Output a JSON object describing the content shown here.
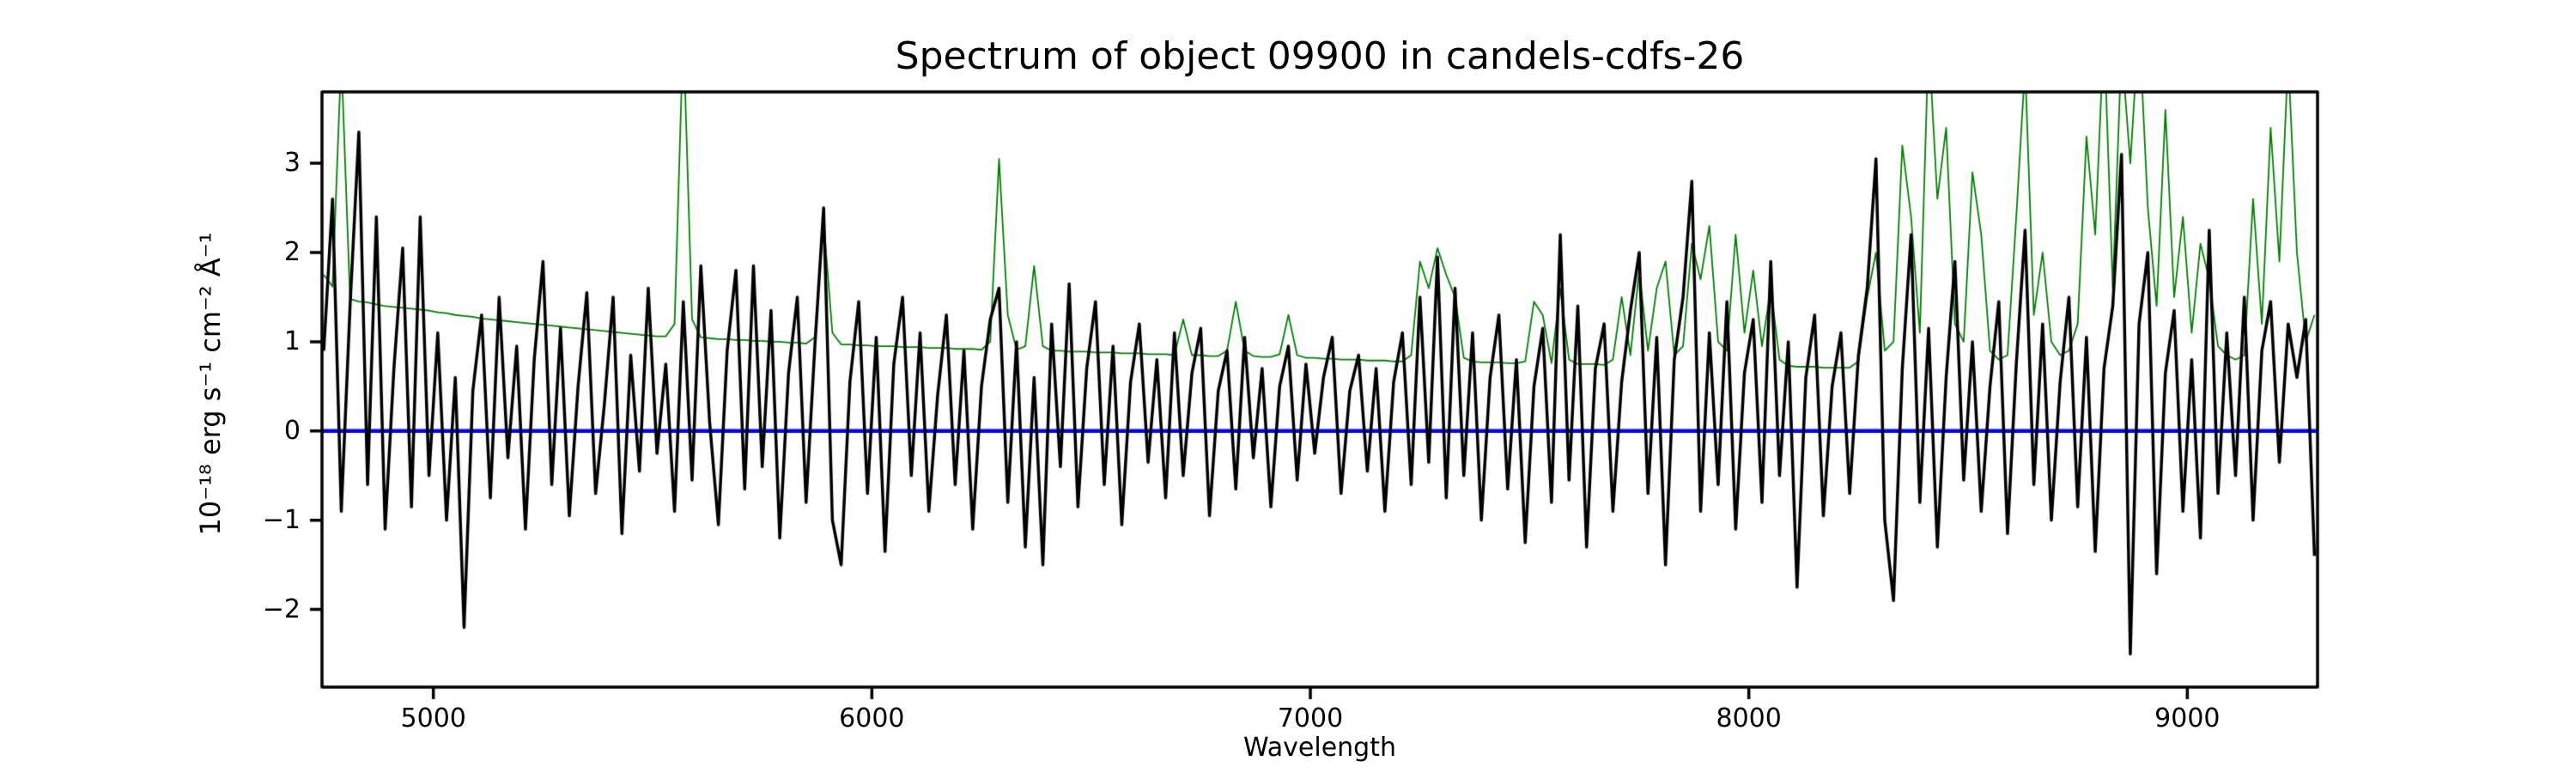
{
  "figure": {
    "title": "Spectrum of object 09900 in candels-cdfs-26",
    "xlabel": "Wavelength",
    "ylabel": "10⁻¹⁸ erg s⁻¹ cm⁻² Å⁻¹"
  },
  "chart_data": {
    "type": "line",
    "title": "Spectrum of object 09900 in candels-cdfs-26",
    "xlabel": "Wavelength",
    "ylabel": "10^-18 erg s^-1 cm^-2 A^-1",
    "xlim": [
      4746,
      9297
    ],
    "ylim": [
      -2.87,
      3.8
    ],
    "xticks": [
      5000,
      6000,
      7000,
      8000,
      9000
    ],
    "yticks": [
      -2,
      -1,
      0,
      1,
      2,
      3
    ],
    "grid": false,
    "legend": false,
    "background": "#ffffff",
    "axis_color": "#000000",
    "series": [
      {
        "name": "zero-line",
        "style": "hline",
        "y": 0,
        "color": "#0000ff",
        "linewidth": 4.5
      },
      {
        "name": "noise-spectrum",
        "style": "line",
        "color": "#008000",
        "linewidth": 1.8,
        "x_start": 4750,
        "x_step": 20,
        "values": [
          1.75,
          1.62,
          4.2,
          1.48,
          1.45,
          1.44,
          1.42,
          1.4,
          1.39,
          1.38,
          1.37,
          1.36,
          1.35,
          1.33,
          1.32,
          1.3,
          1.29,
          1.28,
          1.26,
          1.25,
          1.24,
          1.23,
          1.22,
          1.21,
          1.2,
          1.19,
          1.18,
          1.17,
          1.16,
          1.15,
          1.14,
          1.13,
          1.12,
          1.11,
          1.1,
          1.09,
          1.08,
          1.07,
          1.06,
          1.06,
          1.2,
          4.5,
          1.25,
          1.05,
          1.04,
          1.03,
          1.03,
          1.02,
          1.02,
          1.01,
          1.01,
          1.0,
          1.0,
          0.99,
          0.99,
          0.98,
          1.05,
          2.35,
          1.1,
          0.97,
          0.97,
          0.96,
          0.96,
          0.95,
          0.95,
          0.95,
          0.94,
          0.94,
          0.94,
          0.93,
          0.93,
          0.93,
          0.92,
          0.92,
          0.92,
          0.91,
          1.0,
          3.05,
          1.3,
          0.91,
          0.95,
          1.85,
          0.95,
          0.9,
          0.9,
          0.89,
          0.89,
          0.89,
          0.88,
          0.88,
          0.88,
          0.87,
          0.87,
          0.87,
          0.86,
          0.86,
          0.86,
          0.85,
          1.25,
          0.85,
          0.85,
          0.84,
          0.84,
          0.9,
          1.45,
          0.9,
          0.84,
          0.83,
          0.83,
          0.86,
          1.3,
          0.85,
          0.82,
          0.82,
          0.81,
          0.81,
          0.8,
          0.8,
          0.8,
          0.79,
          0.79,
          0.79,
          0.78,
          0.78,
          0.85,
          1.9,
          1.6,
          2.05,
          1.75,
          1.5,
          0.82,
          0.78,
          0.77,
          0.77,
          0.77,
          0.76,
          0.76,
          0.78,
          1.45,
          1.3,
          0.76,
          1.6,
          0.8,
          0.75,
          0.75,
          0.75,
          0.74,
          0.8,
          1.5,
          0.85,
          1.8,
          0.9,
          1.6,
          1.9,
          0.85,
          0.95,
          2.1,
          1.7,
          2.3,
          1.0,
          0.9,
          2.2,
          1.1,
          1.8,
          0.95,
          1.6,
          0.8,
          0.73,
          0.72,
          0.72,
          0.72,
          0.71,
          0.71,
          0.71,
          0.71,
          0.78,
          1.5,
          2.0,
          0.9,
          1.0,
          3.2,
          2.4,
          1.1,
          4.4,
          2.6,
          3.4,
          1.2,
          1.0,
          2.9,
          2.2,
          0.9,
          0.8,
          0.85,
          2.4,
          4.1,
          1.3,
          2.0,
          1.0,
          0.85,
          0.9,
          1.2,
          3.3,
          2.2,
          4.5,
          1.6,
          4.3,
          3.0,
          4.6,
          2.5,
          1.4,
          3.6,
          1.5,
          2.4,
          1.1,
          2.1,
          1.7,
          0.95,
          0.85,
          0.8,
          0.85,
          2.6,
          1.2,
          3.4,
          1.9,
          4.2,
          2.0,
          1.0,
          1.3
        ]
      },
      {
        "name": "flux-spectrum",
        "style": "line",
        "color": "#000000",
        "linewidth": 3.5,
        "x_start": 4750,
        "x_step": 20,
        "values": [
          0.9,
          2.6,
          -0.9,
          1.4,
          3.35,
          -0.6,
          2.4,
          -1.1,
          0.7,
          2.05,
          -0.85,
          2.4,
          -0.5,
          1.1,
          -1.0,
          0.6,
          -2.2,
          0.45,
          1.3,
          -0.75,
          1.5,
          -0.3,
          0.95,
          -1.1,
          0.8,
          1.9,
          -0.6,
          1.15,
          -0.95,
          0.5,
          1.55,
          -0.7,
          0.3,
          1.5,
          -1.15,
          0.85,
          -0.45,
          1.6,
          -0.25,
          0.75,
          -0.9,
          1.45,
          -0.55,
          1.85,
          0.1,
          -1.05,
          0.9,
          1.8,
          -0.65,
          1.85,
          -0.4,
          1.35,
          -1.2,
          0.65,
          1.5,
          -0.8,
          0.95,
          2.5,
          -1.0,
          -1.5,
          0.55,
          1.45,
          -0.7,
          1.05,
          -1.35,
          0.75,
          1.5,
          -0.5,
          1.1,
          -0.9,
          0.4,
          1.3,
          -0.6,
          0.9,
          -1.1,
          0.5,
          1.25,
          1.6,
          -0.8,
          1.0,
          -1.3,
          0.6,
          -1.5,
          1.2,
          -0.4,
          1.65,
          -0.85,
          0.7,
          1.45,
          -0.6,
          0.95,
          -1.05,
          0.55,
          1.2,
          -0.35,
          0.8,
          -0.75,
          1.1,
          -0.5,
          0.65,
          1.15,
          -0.95,
          0.45,
          0.9,
          -0.65,
          1.05,
          -0.3,
          0.7,
          -0.85,
          0.5,
          0.95,
          -0.55,
          0.75,
          -0.25,
          0.6,
          1.05,
          -0.7,
          0.45,
          0.85,
          -0.45,
          0.7,
          -0.9,
          0.55,
          1.1,
          -0.6,
          1.5,
          -0.35,
          1.95,
          -0.75,
          1.6,
          -0.5,
          1.1,
          -1.0,
          0.6,
          1.3,
          -0.65,
          0.8,
          -1.25,
          0.5,
          1.15,
          -0.8,
          2.2,
          -0.55,
          1.4,
          -1.3,
          0.7,
          1.2,
          -0.9,
          0.55,
          1.35,
          2.0,
          -0.7,
          1.05,
          -1.5,
          0.8,
          1.5,
          2.8,
          -0.9,
          1.1,
          -0.6,
          1.45,
          -1.1,
          0.65,
          1.25,
          -0.8,
          1.9,
          -0.5,
          1.0,
          -1.75,
          0.6,
          1.3,
          -0.95,
          0.5,
          1.1,
          -0.7,
          0.85,
          1.6,
          3.05,
          -1.0,
          -1.9,
          0.7,
          2.2,
          -0.8,
          1.15,
          -1.3,
          0.6,
          1.9,
          -0.55,
          1.0,
          -0.9,
          0.5,
          1.45,
          -1.15,
          0.75,
          2.25,
          -0.6,
          1.2,
          -1.0,
          0.55,
          1.5,
          -0.85,
          1.05,
          -1.35,
          0.7,
          1.4,
          3.1,
          -2.5,
          1.2,
          2.0,
          -1.6,
          0.65,
          1.35,
          -0.9,
          0.8,
          -1.2,
          2.25,
          -0.7,
          1.1,
          -0.5,
          1.5,
          -1.0,
          0.9,
          1.45,
          -0.35,
          1.2,
          0.6,
          1.25,
          -1.4
        ]
      }
    ]
  }
}
